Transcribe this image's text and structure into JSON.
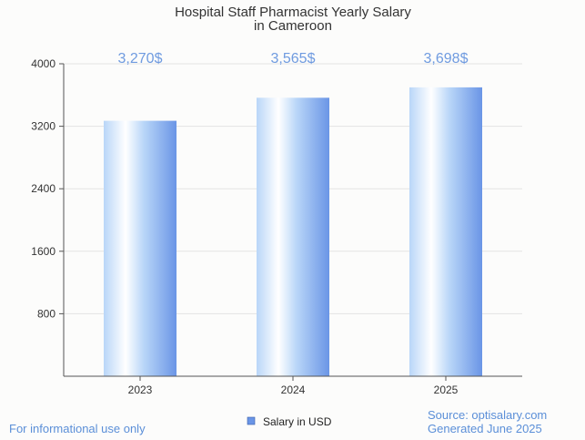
{
  "chart_data": {
    "type": "bar",
    "title_lines": [
      "Hospital Staff Pharmacist Yearly Salary",
      "in Cameroon"
    ],
    "categories": [
      "2023",
      "2024",
      "2025"
    ],
    "series": [
      {
        "name": "Salary in USD",
        "values": [
          3270,
          3565,
          3698
        ]
      }
    ],
    "data_labels": [
      "3,270$",
      "3,565$",
      "3,698$"
    ],
    "y_ticks": [
      800,
      1600,
      2400,
      3200,
      4000
    ],
    "ylim": [
      0,
      4000
    ],
    "xlabel": "",
    "ylabel": "",
    "grid": true,
    "legend_position": "bottom-center",
    "colors": {
      "bar_light": "#ffffff",
      "bar_mid": "#b9d6f8",
      "bar_dark": "#6a95e6",
      "label": "#6f9be0",
      "legend_swatch": "#6a95e6"
    }
  },
  "footer": {
    "left_note": "For informational use only",
    "source": "Source: optisalary.com",
    "generated": "Generated June 2025"
  }
}
